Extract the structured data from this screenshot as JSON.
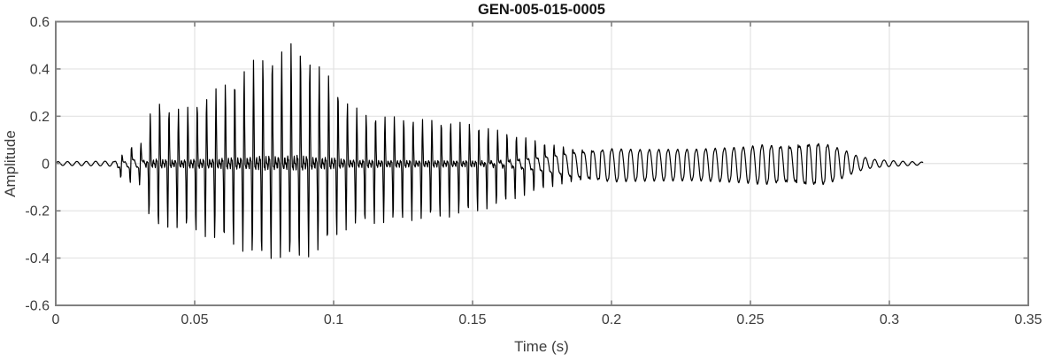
{
  "chart_data": {
    "type": "line",
    "title": "GEN-005-015-0005",
    "xlabel": "Time (s)",
    "ylabel": "Amplitude",
    "xlim": [
      0,
      0.35
    ],
    "ylim": [
      -0.6,
      0.6
    ],
    "xticks": [
      0,
      0.05,
      0.1,
      0.15,
      0.2,
      0.25,
      0.3,
      0.35
    ],
    "xtick_labels": [
      "0",
      "0.05",
      "0.1",
      "0.15",
      "0.2",
      "0.25",
      "0.3",
      "0.35"
    ],
    "yticks": [
      -0.6,
      -0.4,
      -0.2,
      0,
      0.2,
      0.4,
      0.6
    ],
    "ytick_labels": [
      "-0.6",
      "-0.4",
      "-0.2",
      "0",
      "0.2",
      "0.4",
      "0.6"
    ],
    "grid": true,
    "legend": null,
    "line_color": "#000000",
    "background_color": "#ffffff",
    "axis_color": "#808080",
    "tick_label_color": "#3c3c3c",
    "title_color": "#141414",
    "grid_color": "#e3e3e3",
    "signal": {
      "description": "speech-like waveform, single black trace",
      "t_start": 0,
      "t_end": 0.312,
      "f0_hz": 296,
      "peak_positive": 0.52,
      "peak_positive_t": 0.087,
      "peak_negative": -0.42,
      "harmonics": [
        0.45,
        0.8,
        1.0,
        0.7,
        0.45,
        0.25
      ],
      "sharpness": [
        [
          0,
          0
        ],
        [
          0.0205,
          0
        ],
        [
          0.022,
          0.55
        ],
        [
          0.03,
          0.5
        ],
        [
          0.033,
          1
        ],
        [
          0.15,
          1
        ],
        [
          0.165,
          0.7
        ],
        [
          0.185,
          0.25
        ],
        [
          0.2,
          0.08
        ],
        [
          0.255,
          0.06
        ],
        [
          0.265,
          0.18
        ],
        [
          0.275,
          0.12
        ],
        [
          0.285,
          0.05
        ],
        [
          0.312,
          0
        ]
      ],
      "envelope_pos": [
        [
          0,
          0.008
        ],
        [
          0.018,
          0.01
        ],
        [
          0.021,
          0.012
        ],
        [
          0.0225,
          0.07
        ],
        [
          0.0245,
          0.03
        ],
        [
          0.027,
          0.09
        ],
        [
          0.0295,
          0.06
        ],
        [
          0.032,
          0.14
        ],
        [
          0.036,
          0.28
        ],
        [
          0.04,
          0.24
        ],
        [
          0.046,
          0.23
        ],
        [
          0.052,
          0.27
        ],
        [
          0.058,
          0.32
        ],
        [
          0.064,
          0.36
        ],
        [
          0.07,
          0.43
        ],
        [
          0.075,
          0.46
        ],
        [
          0.08,
          0.47
        ],
        [
          0.086,
          0.52
        ],
        [
          0.09,
          0.47
        ],
        [
          0.094,
          0.42
        ],
        [
          0.098,
          0.38
        ],
        [
          0.102,
          0.31
        ],
        [
          0.106,
          0.25
        ],
        [
          0.112,
          0.21
        ],
        [
          0.12,
          0.2
        ],
        [
          0.13,
          0.19
        ],
        [
          0.14,
          0.18
        ],
        [
          0.15,
          0.17
        ],
        [
          0.158,
          0.15
        ],
        [
          0.166,
          0.13
        ],
        [
          0.174,
          0.11
        ],
        [
          0.182,
          0.095
        ],
        [
          0.19,
          0.085
        ],
        [
          0.21,
          0.075
        ],
        [
          0.23,
          0.075
        ],
        [
          0.248,
          0.085
        ],
        [
          0.26,
          0.105
        ],
        [
          0.27,
          0.125
        ],
        [
          0.276,
          0.12
        ],
        [
          0.282,
          0.08
        ],
        [
          0.288,
          0.04
        ],
        [
          0.294,
          0.02
        ],
        [
          0.302,
          0.012
        ],
        [
          0.312,
          0.006
        ]
      ],
      "envelope_neg": [
        [
          0,
          0.008
        ],
        [
          0.018,
          0.01
        ],
        [
          0.021,
          0.012
        ],
        [
          0.0225,
          0.1
        ],
        [
          0.0245,
          0.04
        ],
        [
          0.027,
          0.1
        ],
        [
          0.0295,
          0.07
        ],
        [
          0.032,
          0.2
        ],
        [
          0.036,
          0.28
        ],
        [
          0.04,
          0.27
        ],
        [
          0.046,
          0.28
        ],
        [
          0.052,
          0.3
        ],
        [
          0.058,
          0.33
        ],
        [
          0.064,
          0.35
        ],
        [
          0.07,
          0.39
        ],
        [
          0.075,
          0.41
        ],
        [
          0.08,
          0.4
        ],
        [
          0.086,
          0.42
        ],
        [
          0.09,
          0.4
        ],
        [
          0.094,
          0.38
        ],
        [
          0.098,
          0.35
        ],
        [
          0.102,
          0.3
        ],
        [
          0.106,
          0.27
        ],
        [
          0.112,
          0.26
        ],
        [
          0.12,
          0.25
        ],
        [
          0.13,
          0.24
        ],
        [
          0.14,
          0.23
        ],
        [
          0.15,
          0.21
        ],
        [
          0.158,
          0.19
        ],
        [
          0.166,
          0.16
        ],
        [
          0.174,
          0.135
        ],
        [
          0.182,
          0.115
        ],
        [
          0.19,
          0.105
        ],
        [
          0.21,
          0.095
        ],
        [
          0.23,
          0.09
        ],
        [
          0.248,
          0.1
        ],
        [
          0.26,
          0.115
        ],
        [
          0.27,
          0.135
        ],
        [
          0.276,
          0.125
        ],
        [
          0.282,
          0.085
        ],
        [
          0.288,
          0.04
        ],
        [
          0.294,
          0.02
        ],
        [
          0.302,
          0.012
        ],
        [
          0.312,
          0.006
        ]
      ]
    }
  }
}
